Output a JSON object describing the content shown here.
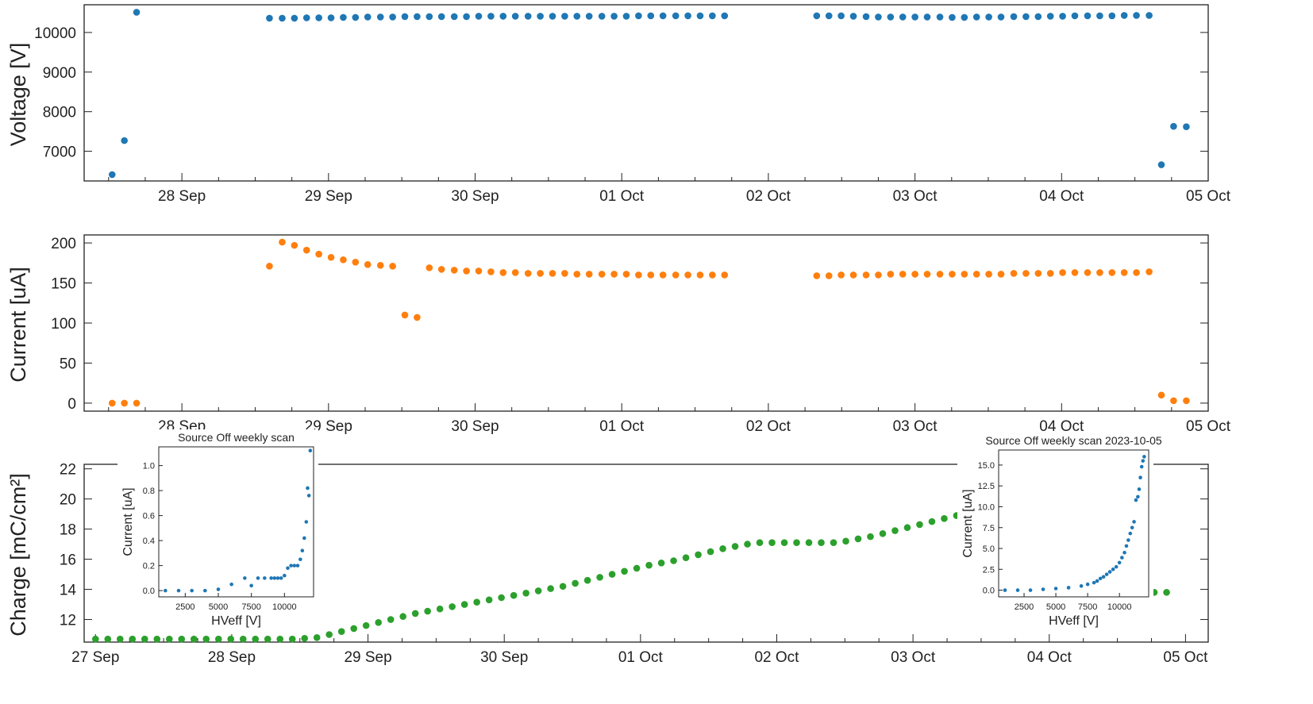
{
  "figure": {
    "x_ticks_top": [
      "28 Sep",
      "29 Sep",
      "30 Sep",
      "01 Oct",
      "02 Oct",
      "03 Oct",
      "04 Oct",
      "05 Oct"
    ],
    "x_ticks_bottom": [
      "27 Sep",
      "28 Sep",
      "29 Sep",
      "30 Sep",
      "01 Oct",
      "02 Oct",
      "03 Oct",
      "04 Oct",
      "05 Oct"
    ]
  },
  "chart_data": [
    {
      "id": "voltage",
      "type": "scatter",
      "title": "",
      "xlabel": "",
      "ylabel": "Voltage [V]",
      "color": "#1f77b4",
      "xlim": [
        "2023-09-27T08:00",
        "2023-10-05T00:00"
      ],
      "ylim": [
        6250,
        10700
      ],
      "yticks": [
        7000,
        8000,
        9000,
        10000
      ],
      "x": [
        "2023-09-27T12:35",
        "2023-09-27T14:35",
        "2023-09-27T16:35",
        "2023-09-28T14:20",
        "2023-09-28T16:25",
        "2023-09-28T18:25",
        "2023-09-28T20:25",
        "2023-09-28T22:25",
        "2023-09-29T00:25",
        "2023-09-29T02:25",
        "2023-09-29T04:25",
        "2023-09-29T06:25",
        "2023-09-29T08:30",
        "2023-09-29T10:30",
        "2023-09-29T12:30",
        "2023-09-29T14:30",
        "2023-09-29T16:30",
        "2023-09-29T18:30",
        "2023-09-29T20:35",
        "2023-09-29T22:35",
        "2023-09-30T00:35",
        "2023-09-30T02:35",
        "2023-09-30T04:35",
        "2023-09-30T06:35",
        "2023-09-30T08:40",
        "2023-09-30T10:40",
        "2023-09-30T12:40",
        "2023-09-30T14:40",
        "2023-09-30T16:40",
        "2023-09-30T18:40",
        "2023-09-30T20:45",
        "2023-09-30T22:45",
        "2023-10-01T00:45",
        "2023-10-01T02:45",
        "2023-10-01T04:45",
        "2023-10-01T06:45",
        "2023-10-01T08:50",
        "2023-10-01T10:50",
        "2023-10-01T12:50",
        "2023-10-01T14:50",
        "2023-10-01T16:50",
        "2023-10-02T07:55",
        "2023-10-02T09:55",
        "2023-10-02T11:55",
        "2023-10-02T13:55",
        "2023-10-02T16:00",
        "2023-10-02T18:00",
        "2023-10-02T20:00",
        "2023-10-02T22:00",
        "2023-10-03T00:00",
        "2023-10-03T02:00",
        "2023-10-03T04:05",
        "2023-10-03T06:05",
        "2023-10-03T08:05",
        "2023-10-03T10:05",
        "2023-10-03T12:05",
        "2023-10-03T14:05",
        "2023-10-03T16:10",
        "2023-10-03T18:10",
        "2023-10-03T20:10",
        "2023-10-03T22:10",
        "2023-10-04T00:10",
        "2023-10-04T02:10",
        "2023-10-04T04:15",
        "2023-10-04T06:15",
        "2023-10-04T08:15",
        "2023-10-04T10:15",
        "2023-10-04T12:15",
        "2023-10-04T14:20",
        "2023-10-04T16:20",
        "2023-10-04T18:20",
        "2023-10-04T20:25"
      ],
      "y": [
        6410,
        7270,
        10510,
        10360,
        10360,
        10360,
        10370,
        10370,
        10370,
        10380,
        10380,
        10390,
        10390,
        10390,
        10400,
        10400,
        10400,
        10400,
        10400,
        10400,
        10410,
        10410,
        10410,
        10410,
        10410,
        10410,
        10410,
        10410,
        10410,
        10410,
        10410,
        10410,
        10410,
        10420,
        10420,
        10420,
        10420,
        10420,
        10420,
        10420,
        10420,
        10420,
        10420,
        10420,
        10410,
        10400,
        10390,
        10390,
        10390,
        10390,
        10390,
        10390,
        10380,
        10380,
        10390,
        10390,
        10390,
        10400,
        10400,
        10400,
        10410,
        10410,
        10420,
        10420,
        10420,
        10420,
        10430,
        10430,
        10430,
        6660,
        7630,
        7620
      ]
    },
    {
      "id": "current",
      "type": "scatter",
      "title": "",
      "xlabel": "",
      "ylabel": "Current [uA]",
      "color": "#ff7f0e",
      "xlim": [
        "2023-09-27T08:00",
        "2023-10-05T00:00"
      ],
      "ylim": [
        -10,
        210
      ],
      "yticks": [
        0,
        50,
        100,
        150,
        200
      ],
      "x": [
        "2023-09-27T12:35",
        "2023-09-27T14:35",
        "2023-09-27T16:35",
        "2023-09-28T14:20",
        "2023-09-28T16:25",
        "2023-09-28T18:25",
        "2023-09-28T20:25",
        "2023-09-28T22:25",
        "2023-09-29T00:25",
        "2023-09-29T02:25",
        "2023-09-29T04:25",
        "2023-09-29T06:25",
        "2023-09-29T08:30",
        "2023-09-29T10:30",
        "2023-09-29T12:30",
        "2023-09-29T14:30",
        "2023-09-29T16:30",
        "2023-09-29T18:30",
        "2023-09-29T20:35",
        "2023-09-29T22:35",
        "2023-09-30T00:35",
        "2023-09-30T02:35",
        "2023-09-30T04:35",
        "2023-09-30T06:35",
        "2023-09-30T08:40",
        "2023-09-30T10:40",
        "2023-09-30T12:40",
        "2023-09-30T14:40",
        "2023-09-30T16:40",
        "2023-09-30T18:40",
        "2023-09-30T20:45",
        "2023-09-30T22:45",
        "2023-10-01T00:45",
        "2023-10-01T02:45",
        "2023-10-01T04:45",
        "2023-10-01T06:45",
        "2023-10-01T08:50",
        "2023-10-01T10:50",
        "2023-10-01T12:50",
        "2023-10-01T14:50",
        "2023-10-01T16:50",
        "2023-10-02T07:55",
        "2023-10-02T09:55",
        "2023-10-02T11:55",
        "2023-10-02T13:55",
        "2023-10-02T16:00",
        "2023-10-02T18:00",
        "2023-10-02T20:00",
        "2023-10-02T22:00",
        "2023-10-03T00:00",
        "2023-10-03T02:00",
        "2023-10-03T04:05",
        "2023-10-03T06:05",
        "2023-10-03T08:05",
        "2023-10-03T10:05",
        "2023-10-03T12:05",
        "2023-10-03T14:05",
        "2023-10-03T16:10",
        "2023-10-03T18:10",
        "2023-10-03T20:10",
        "2023-10-03T22:10",
        "2023-10-04T00:10",
        "2023-10-04T02:10",
        "2023-10-04T04:15",
        "2023-10-04T06:15",
        "2023-10-04T08:15",
        "2023-10-04T10:15",
        "2023-10-04T12:15",
        "2023-10-04T14:20",
        "2023-10-04T16:20",
        "2023-10-04T18:20",
        "2023-10-04T20:25"
      ],
      "y": [
        0,
        0,
        0,
        171,
        201,
        197,
        191,
        186,
        182,
        179,
        176,
        173,
        172,
        171,
        110,
        107,
        169,
        167,
        166,
        165,
        165,
        164,
        163,
        163,
        162,
        162,
        162,
        162,
        161,
        161,
        161,
        161,
        161,
        160,
        160,
        160,
        160,
        160,
        160,
        160,
        160,
        159,
        159,
        160,
        160,
        160,
        160,
        161,
        161,
        161,
        161,
        161,
        161,
        161,
        161,
        161,
        161,
        162,
        162,
        162,
        162,
        163,
        163,
        163,
        163,
        163,
        163,
        163,
        164,
        10,
        3,
        3
      ]
    },
    {
      "id": "charge",
      "type": "scatter",
      "title": "",
      "xlabel": "",
      "ylabel": "Charge [mC/cm²]",
      "color": "#2ca02c",
      "xlim": [
        "2023-09-26T22:00",
        "2023-10-05T04:00"
      ],
      "ylim": [
        10.5,
        22.3
      ],
      "yticks": [
        12,
        14,
        16,
        18,
        20,
        22
      ],
      "x": [
        "2023-09-27T00:00",
        "2023-09-27T02:10",
        "2023-09-27T04:20",
        "2023-09-27T06:30",
        "2023-09-27T08:40",
        "2023-09-27T10:50",
        "2023-09-27T13:00",
        "2023-09-27T15:10",
        "2023-09-27T17:20",
        "2023-09-27T19:30",
        "2023-09-27T21:40",
        "2023-09-27T23:50",
        "2023-09-28T02:00",
        "2023-09-28T04:10",
        "2023-09-28T06:20",
        "2023-09-28T08:30",
        "2023-09-28T10:40",
        "2023-09-28T12:50",
        "2023-09-28T15:00",
        "2023-09-28T17:10",
        "2023-09-28T19:20",
        "2023-09-28T21:30",
        "2023-09-28T23:40",
        "2023-09-29T01:50",
        "2023-09-29T04:00",
        "2023-09-29T06:10",
        "2023-09-29T08:20",
        "2023-09-29T10:30",
        "2023-09-29T12:40",
        "2023-09-29T14:50",
        "2023-09-29T17:00",
        "2023-09-29T19:10",
        "2023-09-29T21:20",
        "2023-09-29T23:30",
        "2023-09-30T01:40",
        "2023-09-30T03:50",
        "2023-09-30T06:00",
        "2023-09-30T08:10",
        "2023-09-30T10:20",
        "2023-09-30T12:30",
        "2023-09-30T14:40",
        "2023-09-30T16:50",
        "2023-09-30T19:00",
        "2023-09-30T21:10",
        "2023-09-30T23:20",
        "2023-10-01T01:30",
        "2023-10-01T03:40",
        "2023-10-01T05:50",
        "2023-10-01T08:00",
        "2023-10-01T10:10",
        "2023-10-01T12:20",
        "2023-10-01T14:30",
        "2023-10-01T16:40",
        "2023-10-01T18:50",
        "2023-10-01T21:00",
        "2023-10-01T23:10",
        "2023-10-02T01:20",
        "2023-10-02T03:30",
        "2023-10-02T05:40",
        "2023-10-02T07:50",
        "2023-10-02T10:00",
        "2023-10-02T12:10",
        "2023-10-02T14:20",
        "2023-10-02T16:30",
        "2023-10-02T18:40",
        "2023-10-02T20:50",
        "2023-10-02T23:00",
        "2023-10-03T01:10",
        "2023-10-03T03:20",
        "2023-10-03T05:30",
        "2023-10-03T07:40",
        "2023-10-03T09:50",
        "2023-10-04T16:20",
        "2023-10-04T18:30",
        "2023-10-04T20:40"
      ],
      "y": [
        10.7,
        10.7,
        10.7,
        10.7,
        10.7,
        10.7,
        10.7,
        10.7,
        10.7,
        10.7,
        10.7,
        10.7,
        10.7,
        10.7,
        10.7,
        10.7,
        10.7,
        10.75,
        10.8,
        11.0,
        11.2,
        11.4,
        11.6,
        11.8,
        12.0,
        12.2,
        12.4,
        12.55,
        12.7,
        12.85,
        13.0,
        13.15,
        13.3,
        13.45,
        13.6,
        13.75,
        13.9,
        14.05,
        14.2,
        14.4,
        14.6,
        14.8,
        15.0,
        15.2,
        15.4,
        15.6,
        15.75,
        15.9,
        16.1,
        16.3,
        16.5,
        16.7,
        16.85,
        17.0,
        17.1,
        17.1,
        17.1,
        17.1,
        17.1,
        17.1,
        17.1,
        17.2,
        17.35,
        17.5,
        17.7,
        17.9,
        18.1,
        18.3,
        18.5,
        18.7,
        18.9,
        19.05,
        13.8,
        13.8,
        13.8
      ]
    },
    {
      "id": "inset-left",
      "type": "scatter",
      "title": "Source Off weekly scan",
      "xlabel": "HVeff [V]",
      "ylabel": "Current [uA]",
      "color": "#1f77b4",
      "xlim": [
        500,
        12200
      ],
      "ylim": [
        -0.05,
        1.15
      ],
      "xticks": [
        2500,
        5000,
        7500,
        10000
      ],
      "yticks": [
        0.0,
        0.2,
        0.4,
        0.6,
        0.8,
        1.0
      ],
      "x": [
        1000,
        2000,
        3000,
        4000,
        5000,
        6000,
        7000,
        7500,
        8000,
        8500,
        9000,
        9250,
        9500,
        9750,
        10000,
        10250,
        10500,
        10750,
        11000,
        11200,
        11350,
        11500,
        11650,
        11750,
        11850,
        11950
      ],
      "y": [
        0.0,
        0.0,
        0.0,
        0.0,
        0.01,
        0.05,
        0.1,
        0.04,
        0.1,
        0.1,
        0.1,
        0.1,
        0.1,
        0.1,
        0.12,
        0.18,
        0.2,
        0.2,
        0.2,
        0.25,
        0.32,
        0.42,
        0.55,
        0.82,
        0.76,
        1.12
      ]
    },
    {
      "id": "inset-right",
      "type": "scatter",
      "title": "Source Off weekly scan 2023-10-05",
      "xlabel": "HVeff [V]",
      "ylabel": "Current [uA]",
      "color": "#1f77b4",
      "xlim": [
        500,
        12300
      ],
      "ylim": [
        -0.8,
        16.8
      ],
      "xticks": [
        2500,
        5000,
        7500,
        10000
      ],
      "yticks": [
        0.0,
        2.5,
        5.0,
        7.5,
        10.0,
        12.5,
        15.0
      ],
      "x": [
        1000,
        2000,
        3000,
        4000,
        5000,
        6000,
        7000,
        7500,
        8000,
        8250,
        8500,
        8750,
        9000,
        9250,
        9500,
        9750,
        10000,
        10200,
        10400,
        10550,
        10700,
        10850,
        11000,
        11150,
        11300,
        11450,
        11550,
        11650,
        11750,
        11850,
        11950
      ],
      "y": [
        0.0,
        0.0,
        0.0,
        0.1,
        0.2,
        0.3,
        0.5,
        0.7,
        0.9,
        1.1,
        1.4,
        1.6,
        1.9,
        2.2,
        2.5,
        2.8,
        3.3,
        3.9,
        4.5,
        5.3,
        6.0,
        6.8,
        7.5,
        8.2,
        10.8,
        11.2,
        12.1,
        13.5,
        14.8,
        15.5,
        16.0
      ]
    }
  ]
}
